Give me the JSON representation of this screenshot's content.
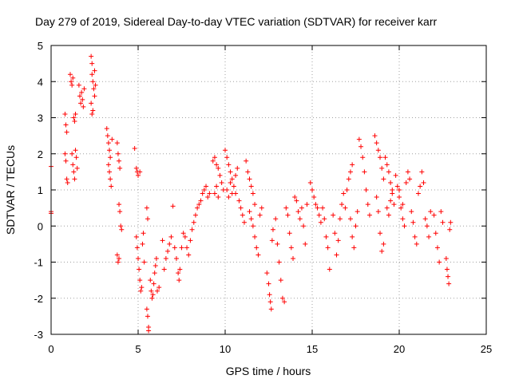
{
  "chart_data": {
    "type": "scatter",
    "title": "Day 279 of 2019, Sidereal Day-to-day VTEC variation (SDTVAR) for receiver karr",
    "xlabel": "GPS time / hours",
    "ylabel": "SDTVAR / TECUs",
    "xlim": [
      0,
      25
    ],
    "ylim": [
      -3,
      5
    ],
    "xticks": [
      0,
      5,
      10,
      15,
      20,
      25
    ],
    "yticks": [
      -3,
      -2,
      -1,
      0,
      1,
      2,
      3,
      4,
      5
    ],
    "grid": true,
    "marker": "+",
    "color": "#ff0000",
    "series": [
      {
        "name": "SDTVAR",
        "points": [
          [
            0.0,
            1.65
          ],
          [
            0.0,
            0.4
          ],
          [
            0.0,
            0.35
          ],
          [
            0.8,
            3.1
          ],
          [
            0.85,
            2.8
          ],
          [
            0.9,
            2.6
          ],
          [
            0.8,
            2.0
          ],
          [
            0.85,
            1.8
          ],
          [
            0.9,
            1.3
          ],
          [
            0.95,
            1.2
          ],
          [
            1.1,
            4.2
          ],
          [
            1.15,
            4.0
          ],
          [
            1.2,
            3.9
          ],
          [
            1.25,
            4.1
          ],
          [
            1.3,
            3.0
          ],
          [
            1.35,
            2.9
          ],
          [
            1.4,
            3.1
          ],
          [
            1.2,
            2.0
          ],
          [
            1.25,
            1.7
          ],
          [
            1.3,
            1.5
          ],
          [
            1.35,
            1.3
          ],
          [
            1.4,
            2.1
          ],
          [
            1.45,
            1.9
          ],
          [
            1.5,
            1.6
          ],
          [
            1.6,
            3.9
          ],
          [
            1.65,
            3.6
          ],
          [
            1.7,
            3.4
          ],
          [
            1.75,
            3.7
          ],
          [
            1.8,
            3.5
          ],
          [
            1.85,
            3.3
          ],
          [
            1.9,
            3.8
          ],
          [
            2.3,
            4.7
          ],
          [
            2.35,
            4.5
          ],
          [
            2.35,
            4.2
          ],
          [
            2.4,
            4.0
          ],
          [
            2.45,
            3.8
          ],
          [
            2.5,
            3.6
          ],
          [
            2.3,
            3.4
          ],
          [
            2.35,
            3.1
          ],
          [
            2.4,
            3.2
          ],
          [
            2.5,
            4.3
          ],
          [
            2.55,
            3.9
          ],
          [
            3.2,
            2.7
          ],
          [
            3.25,
            2.5
          ],
          [
            3.3,
            2.3
          ],
          [
            3.35,
            2.1
          ],
          [
            3.4,
            1.9
          ],
          [
            3.3,
            1.7
          ],
          [
            3.35,
            1.5
          ],
          [
            3.4,
            1.3
          ],
          [
            3.45,
            1.1
          ],
          [
            3.5,
            2.4
          ],
          [
            3.8,
            2.3
          ],
          [
            3.85,
            2.0
          ],
          [
            3.9,
            1.8
          ],
          [
            3.95,
            1.6
          ],
          [
            3.9,
            0.6
          ],
          [
            3.95,
            0.4
          ],
          [
            4.0,
            0.0
          ],
          [
            4.05,
            -0.1
          ],
          [
            3.8,
            -0.8
          ],
          [
            3.85,
            -1.0
          ],
          [
            3.9,
            -0.9
          ],
          [
            4.8,
            2.15
          ],
          [
            4.9,
            1.6
          ],
          [
            4.95,
            1.5
          ],
          [
            5.0,
            1.4
          ],
          [
            5.1,
            1.5
          ],
          [
            4.9,
            -0.3
          ],
          [
            4.95,
            -0.6
          ],
          [
            5.0,
            -0.9
          ],
          [
            5.05,
            -1.2
          ],
          [
            5.1,
            -1.5
          ],
          [
            5.15,
            -1.8
          ],
          [
            5.2,
            -1.7
          ],
          [
            5.25,
            -0.5
          ],
          [
            5.3,
            -0.2
          ],
          [
            5.35,
            -1.0
          ],
          [
            5.5,
            -2.3
          ],
          [
            5.55,
            -2.5
          ],
          [
            5.6,
            -2.8
          ],
          [
            5.6,
            -2.9
          ],
          [
            5.5,
            0.5
          ],
          [
            5.55,
            0.2
          ],
          [
            5.7,
            -1.5
          ],
          [
            5.75,
            -1.8
          ],
          [
            5.8,
            -2.0
          ],
          [
            5.85,
            -1.9
          ],
          [
            5.9,
            -1.6
          ],
          [
            5.95,
            -1.3
          ],
          [
            6.0,
            -1.1
          ],
          [
            6.05,
            -0.9
          ],
          [
            6.1,
            -1.8
          ],
          [
            6.2,
            -1.7
          ],
          [
            6.4,
            -0.4
          ],
          [
            6.5,
            -1.2
          ],
          [
            6.6,
            -0.9
          ],
          [
            6.7,
            -0.7
          ],
          [
            6.8,
            -0.5
          ],
          [
            6.9,
            -0.3
          ],
          [
            7.0,
            0.55
          ],
          [
            7.1,
            -0.6
          ],
          [
            7.2,
            -0.9
          ],
          [
            7.3,
            -1.3
          ],
          [
            7.35,
            -1.5
          ],
          [
            7.4,
            -1.2
          ],
          [
            7.5,
            -0.6
          ],
          [
            7.6,
            -0.2
          ],
          [
            7.7,
            -0.3
          ],
          [
            7.8,
            -0.6
          ],
          [
            7.9,
            -0.8
          ],
          [
            8.0,
            -0.4
          ],
          [
            8.1,
            -0.1
          ],
          [
            8.2,
            0.1
          ],
          [
            8.3,
            0.3
          ],
          [
            8.4,
            0.5
          ],
          [
            8.5,
            0.6
          ],
          [
            8.6,
            0.7
          ],
          [
            8.7,
            0.9
          ],
          [
            8.8,
            1.0
          ],
          [
            8.9,
            1.1
          ],
          [
            9.0,
            0.8
          ],
          [
            9.1,
            0.9
          ],
          [
            9.3,
            1.8
          ],
          [
            9.4,
            1.9
          ],
          [
            9.5,
            1.7
          ],
          [
            9.6,
            1.6
          ],
          [
            9.7,
            1.4
          ],
          [
            9.8,
            1.2
          ],
          [
            9.9,
            1.0
          ],
          [
            9.4,
            0.9
          ],
          [
            9.5,
            1.1
          ],
          [
            9.6,
            0.8
          ],
          [
            10.0,
            2.1
          ],
          [
            10.1,
            1.9
          ],
          [
            10.2,
            1.7
          ],
          [
            10.3,
            1.5
          ],
          [
            10.4,
            1.3
          ],
          [
            10.5,
            1.1
          ],
          [
            10.6,
            0.9
          ],
          [
            10.1,
            1.0
          ],
          [
            10.2,
            0.8
          ],
          [
            10.3,
            1.2
          ],
          [
            10.4,
            0.9
          ],
          [
            10.6,
            1.4
          ],
          [
            10.7,
            1.6
          ],
          [
            10.8,
            0.7
          ],
          [
            10.9,
            0.5
          ],
          [
            11.0,
            0.3
          ],
          [
            11.1,
            0.1
          ],
          [
            11.2,
            1.8
          ],
          [
            11.3,
            1.5
          ],
          [
            11.4,
            1.3
          ],
          [
            11.5,
            1.1
          ],
          [
            11.6,
            0.9
          ],
          [
            11.7,
            0.6
          ],
          [
            11.4,
            0.4
          ],
          [
            11.5,
            0.2
          ],
          [
            11.6,
            0.0
          ],
          [
            11.7,
            -0.3
          ],
          [
            11.8,
            -0.6
          ],
          [
            11.9,
            -0.8
          ],
          [
            12.0,
            0.3
          ],
          [
            12.1,
            0.5
          ],
          [
            12.4,
            -1.3
          ],
          [
            12.5,
            -1.6
          ],
          [
            12.55,
            -1.9
          ],
          [
            12.6,
            -2.1
          ],
          [
            12.65,
            -2.3
          ],
          [
            12.7,
            -0.4
          ],
          [
            12.75,
            -0.1
          ],
          [
            12.9,
            0.2
          ],
          [
            13.0,
            -0.5
          ],
          [
            13.1,
            -1.0
          ],
          [
            13.2,
            -1.5
          ],
          [
            13.3,
            -2.0
          ],
          [
            13.4,
            -2.1
          ],
          [
            13.5,
            0.5
          ],
          [
            13.6,
            0.3
          ],
          [
            13.7,
            -0.2
          ],
          [
            13.8,
            -0.6
          ],
          [
            13.9,
            -0.9
          ],
          [
            14.0,
            0.8
          ],
          [
            14.1,
            0.7
          ],
          [
            14.2,
            0.4
          ],
          [
            14.3,
            0.2
          ],
          [
            14.4,
            0.5
          ],
          [
            14.5,
            0.0
          ],
          [
            14.6,
            -0.5
          ],
          [
            14.7,
            0.6
          ],
          [
            14.9,
            1.2
          ],
          [
            15.0,
            1.0
          ],
          [
            15.1,
            0.8
          ],
          [
            15.2,
            0.6
          ],
          [
            15.3,
            0.5
          ],
          [
            15.4,
            0.3
          ],
          [
            15.5,
            0.1
          ],
          [
            15.6,
            0.5
          ],
          [
            15.7,
            0.2
          ],
          [
            15.8,
            -0.3
          ],
          [
            15.9,
            -0.6
          ],
          [
            16.0,
            -1.2
          ],
          [
            16.2,
            0.3
          ],
          [
            16.3,
            -0.2
          ],
          [
            16.4,
            -0.8
          ],
          [
            16.5,
            -0.4
          ],
          [
            16.6,
            0.2
          ],
          [
            16.7,
            0.6
          ],
          [
            16.8,
            0.9
          ],
          [
            16.9,
            0.5
          ],
          [
            17.0,
            1.0
          ],
          [
            17.1,
            1.3
          ],
          [
            17.2,
            1.5
          ],
          [
            17.3,
            1.7
          ],
          [
            17.2,
            0.2
          ],
          [
            17.3,
            -0.3
          ],
          [
            17.4,
            -0.6
          ],
          [
            17.5,
            0.0
          ],
          [
            17.6,
            0.4
          ],
          [
            17.7,
            2.4
          ],
          [
            17.8,
            2.2
          ],
          [
            17.9,
            1.9
          ],
          [
            18.0,
            1.5
          ],
          [
            18.1,
            1.0
          ],
          [
            18.2,
            0.6
          ],
          [
            18.3,
            0.3
          ],
          [
            18.6,
            2.5
          ],
          [
            18.7,
            2.3
          ],
          [
            18.8,
            2.1
          ],
          [
            18.9,
            1.9
          ],
          [
            19.0,
            1.6
          ],
          [
            19.1,
            1.3
          ],
          [
            18.7,
            0.8
          ],
          [
            18.8,
            0.4
          ],
          [
            18.9,
            -0.2
          ],
          [
            19.0,
            -0.7
          ],
          [
            19.1,
            -0.5
          ],
          [
            19.2,
            1.9
          ],
          [
            19.3,
            1.7
          ],
          [
            19.4,
            1.5
          ],
          [
            19.5,
            1.2
          ],
          [
            19.6,
            0.9
          ],
          [
            19.7,
            0.6
          ],
          [
            19.3,
            0.5
          ],
          [
            19.4,
            0.3
          ],
          [
            19.5,
            0.7
          ],
          [
            19.6,
            1.0
          ],
          [
            19.8,
            1.4
          ],
          [
            19.9,
            1.1
          ],
          [
            20.0,
            0.8
          ],
          [
            20.1,
            0.5
          ],
          [
            20.2,
            0.2
          ],
          [
            20.3,
            0.0
          ],
          [
            20.0,
            1.0
          ],
          [
            20.2,
            0.6
          ],
          [
            20.4,
            1.2
          ],
          [
            20.5,
            1.5
          ],
          [
            20.6,
            1.3
          ],
          [
            20.7,
            0.4
          ],
          [
            20.8,
            0.1
          ],
          [
            20.9,
            -0.3
          ],
          [
            21.0,
            -0.5
          ],
          [
            21.1,
            0.9
          ],
          [
            21.2,
            1.1
          ],
          [
            21.3,
            1.5
          ],
          [
            21.4,
            1.2
          ],
          [
            21.5,
            0.2
          ],
          [
            21.6,
            0.0
          ],
          [
            21.7,
            -0.3
          ],
          [
            21.8,
            0.4
          ],
          [
            22.0,
            0.3
          ],
          [
            22.1,
            -0.2
          ],
          [
            22.2,
            -0.6
          ],
          [
            22.3,
            -1.0
          ],
          [
            22.4,
            0.4
          ],
          [
            22.5,
            0.1
          ],
          [
            22.7,
            -0.9
          ],
          [
            22.75,
            -1.2
          ],
          [
            22.8,
            -1.4
          ],
          [
            22.85,
            -1.6
          ],
          [
            22.9,
            -0.1
          ],
          [
            22.95,
            0.1
          ]
        ]
      }
    ]
  }
}
